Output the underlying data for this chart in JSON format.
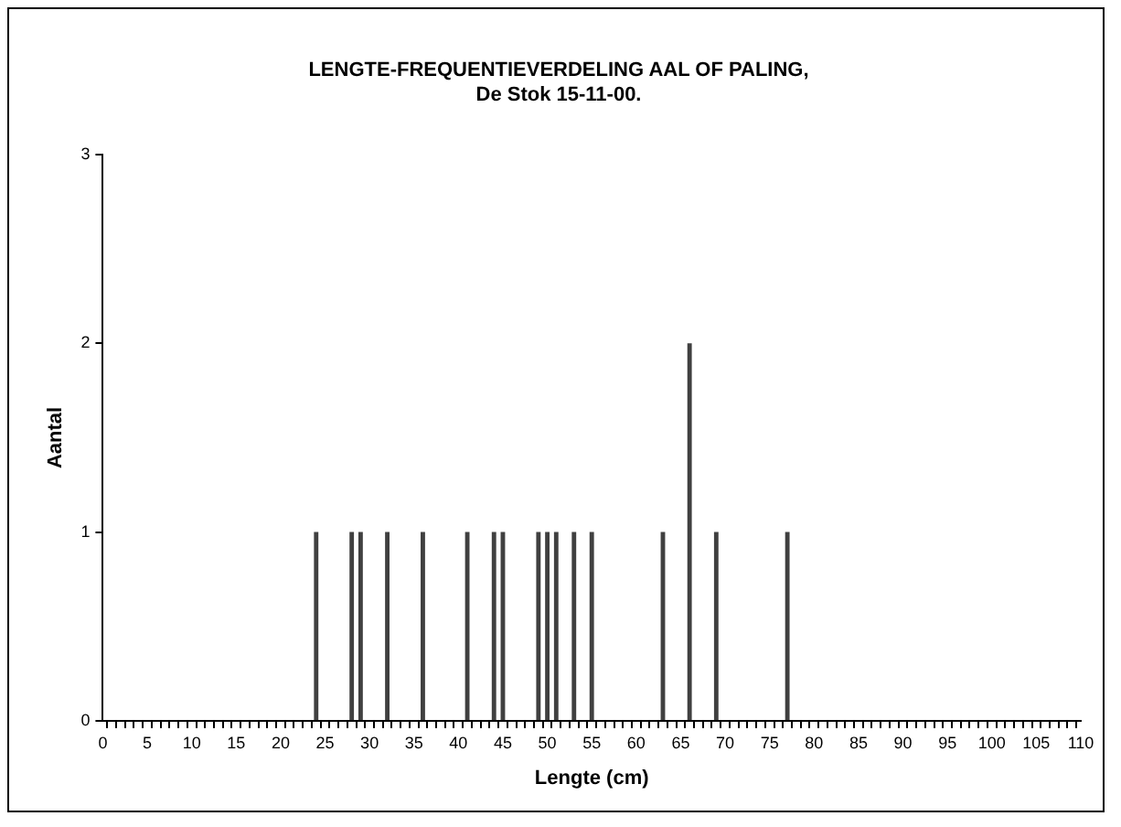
{
  "chart_data": {
    "type": "bar",
    "title": [
      "LENGTE-FREQUENTIEVERDELING AAL OF PALING,",
      "De Stok 15-11-00."
    ],
    "xlabel": "Lengte (cm)",
    "ylabel": "Aantal",
    "categories": [
      "0",
      null,
      null,
      null,
      null,
      "5",
      null,
      null,
      null,
      null,
      "10",
      null,
      null,
      null,
      null,
      "15",
      null,
      null,
      null,
      null,
      "20",
      null,
      null,
      null,
      null,
      "25",
      null,
      null,
      null,
      null,
      "30",
      null,
      null,
      null,
      null,
      "35",
      null,
      null,
      null,
      null,
      "40",
      null,
      null,
      null,
      null,
      "45",
      null,
      null,
      null,
      null,
      "50",
      null,
      null,
      null,
      null,
      "55",
      null,
      null,
      null,
      null,
      "60",
      null,
      null,
      null,
      null,
      "65",
      null,
      null,
      null,
      null,
      "70",
      null,
      null,
      null,
      null,
      "75",
      null,
      null,
      null,
      null,
      "80",
      null,
      null,
      null,
      null,
      "85",
      null,
      null,
      null,
      null,
      "90",
      null,
      null,
      null,
      null,
      "95",
      null,
      null,
      null,
      null,
      "100",
      null,
      null,
      null,
      null,
      "105",
      null,
      null,
      null,
      null,
      "110"
    ],
    "values": [
      0,
      0,
      0,
      0,
      0,
      0,
      0,
      0,
      0,
      0,
      0,
      0,
      0,
      0,
      0,
      0,
      0,
      0,
      0,
      0,
      0,
      0,
      0,
      0,
      1,
      0,
      0,
      0,
      1,
      1,
      0,
      0,
      1,
      0,
      0,
      0,
      1,
      0,
      0,
      0,
      0,
      1,
      0,
      0,
      1,
      1,
      0,
      0,
      0,
      1,
      1,
      1,
      0,
      1,
      0,
      1,
      0,
      0,
      0,
      0,
      0,
      0,
      0,
      1,
      0,
      0,
      2,
      0,
      0,
      1,
      0,
      0,
      0,
      0,
      0,
      0,
      0,
      1,
      0,
      0,
      0,
      0,
      0,
      0,
      0,
      0,
      0,
      0,
      0,
      0,
      0,
      0,
      0,
      0,
      0,
      0,
      0,
      0,
      0,
      0,
      0,
      0,
      0,
      0,
      0,
      0,
      0,
      0,
      0,
      0,
      0
    ],
    "color": "#404040",
    "ylim": [
      0,
      3
    ],
    "yticks": [
      0,
      1,
      2,
      3
    ],
    "grid": false,
    "legend": false
  }
}
